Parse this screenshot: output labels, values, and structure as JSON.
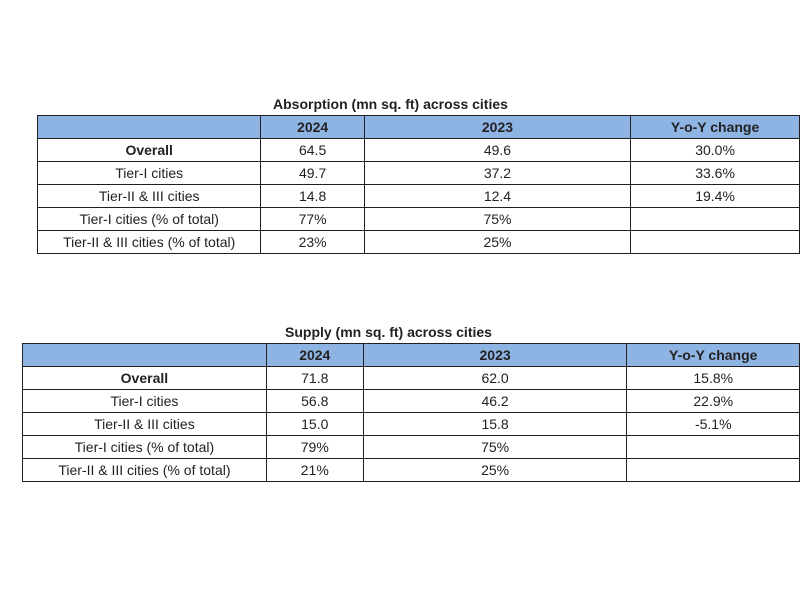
{
  "chart_data": [
    {
      "type": "table",
      "title": "Absorption (mn sq. ft) across cities",
      "columns": [
        "",
        "2024",
        "2023",
        "Y-o-Y change"
      ],
      "rows": [
        {
          "label": "Overall",
          "bold": true,
          "values": [
            "64.5",
            "49.6",
            "30.0%"
          ]
        },
        {
          "label": "Tier-I cities",
          "bold": false,
          "values": [
            "49.7",
            "37.2",
            "33.6%"
          ]
        },
        {
          "label": "Tier-II & III cities",
          "bold": false,
          "values": [
            "14.8",
            "12.4",
            "19.4%"
          ]
        },
        {
          "label": "Tier-I cities (% of total)",
          "bold": false,
          "values": [
            "77%",
            "75%",
            ""
          ]
        },
        {
          "label": "Tier-II & III cities (% of total)",
          "bold": false,
          "values": [
            "23%",
            "25%",
            ""
          ]
        }
      ]
    },
    {
      "type": "table",
      "title": "Supply (mn sq. ft) across cities",
      "columns": [
        "",
        "2024",
        "2023",
        "Y-o-Y change"
      ],
      "rows": [
        {
          "label": "Overall",
          "bold": true,
          "values": [
            "71.8",
            "62.0",
            "15.8%"
          ]
        },
        {
          "label": "Tier-I cities",
          "bold": false,
          "values": [
            "56.8",
            "46.2",
            "22.9%"
          ]
        },
        {
          "label": "Tier-II & III cities",
          "bold": false,
          "values": [
            "15.0",
            "15.8",
            "-5.1%"
          ]
        },
        {
          "label": "Tier-I cities (% of total)",
          "bold": false,
          "values": [
            "79%",
            "75%",
            ""
          ]
        },
        {
          "label": "Tier-II & III cities (% of total)",
          "bold": false,
          "values": [
            "21%",
            "25%",
            ""
          ]
        }
      ]
    }
  ],
  "colors": {
    "header_background": "#8eb4e3",
    "border": "#1f1f1f",
    "text": "#222222"
  }
}
